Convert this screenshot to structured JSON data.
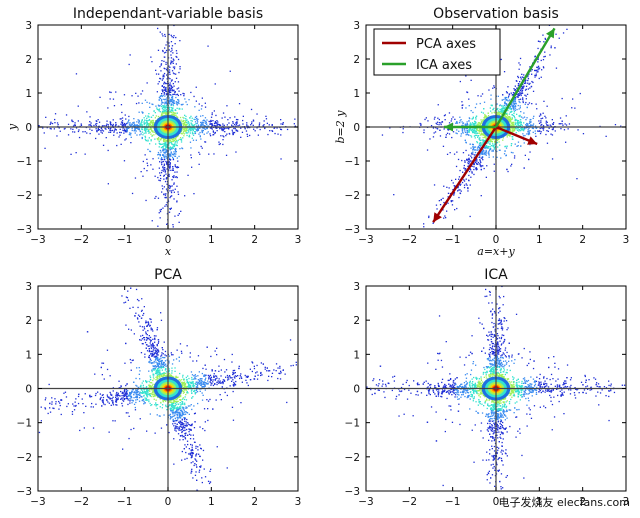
{
  "colors": {
    "background": "#ffffff",
    "frame": "#000000",
    "zero_axes": "#444444",
    "density_low": "#1f2fd6",
    "density_mid": "#35e2cf",
    "density_high": "#ffd400",
    "density_peak": "#d40000",
    "pca_axes": "#a00000",
    "ica_axes": "#2aa02a"
  },
  "chart_data": [
    {
      "type": "scatter",
      "style": "density-colored point cloud",
      "title": "Independant-variable basis",
      "xlabel": "x",
      "ylabel": "y",
      "xlim": [
        -3,
        3
      ],
      "ylim": [
        -3,
        3
      ],
      "xticks": [
        -3,
        -2,
        -1,
        0,
        1,
        2,
        3
      ],
      "yticks": [
        -3,
        -2,
        -1,
        0,
        1,
        2,
        3
      ],
      "grid": false,
      "zero_lines": true,
      "distribution": {
        "center": [
          0,
          0
        ],
        "arms": [
          {
            "direction": [
              1,
              0
            ],
            "extent": 3
          },
          {
            "direction": [
              0,
              1
            ],
            "extent": 3
          }
        ]
      }
    },
    {
      "type": "scatter",
      "style": "density-colored point cloud",
      "title": "Observation basis",
      "xlabel": "a=x+y",
      "ylabel": "b=2 y",
      "xlim": [
        -3,
        3
      ],
      "ylim": [
        -3,
        3
      ],
      "xticks": [
        -3,
        -2,
        -1,
        0,
        1,
        2,
        3
      ],
      "yticks": [
        -3,
        -2,
        -1,
        0,
        1,
        2,
        3
      ],
      "grid": false,
      "zero_lines": true,
      "distribution": {
        "center": [
          0,
          0
        ],
        "arms": [
          {
            "direction": [
              1,
              0
            ],
            "extent": 1.5
          },
          {
            "direction": [
              1,
              2
            ],
            "extent": 3
          }
        ]
      },
      "legend": {
        "placement": "top-left",
        "entries": [
          {
            "label": "PCA axes",
            "color": "#a00000"
          },
          {
            "label": "ICA axes",
            "color": "#2aa02a"
          }
        ]
      },
      "arrows": [
        {
          "series": "PCA axes",
          "from": [
            0,
            0
          ],
          "to": [
            -1.45,
            -2.8
          ]
        },
        {
          "series": "PCA axes",
          "from": [
            0,
            0
          ],
          "to": [
            0.95,
            -0.5
          ]
        },
        {
          "series": "ICA axes",
          "from": [
            0,
            0
          ],
          "to": [
            1.35,
            2.9
          ]
        },
        {
          "series": "ICA axes",
          "from": [
            0,
            0
          ],
          "to": [
            -1.2,
            0
          ]
        }
      ]
    },
    {
      "type": "scatter",
      "style": "density-colored point cloud",
      "title": "PCA",
      "xlabel": "",
      "ylabel": "",
      "xlim": [
        -3,
        3
      ],
      "ylim": [
        -3,
        3
      ],
      "xticks": [
        -3,
        -2,
        -1,
        0,
        1,
        2,
        3
      ],
      "yticks": [
        -3,
        -2,
        -1,
        0,
        1,
        2,
        3
      ],
      "grid": false,
      "zero_lines": true,
      "distribution": {
        "center": [
          0,
          0
        ],
        "arms": [
          {
            "direction": [
              1,
              0.2
            ],
            "extent": 3
          },
          {
            "direction": [
              -0.3,
              1
            ],
            "extent": 3
          }
        ]
      }
    },
    {
      "type": "scatter",
      "style": "density-colored point cloud",
      "title": "ICA",
      "xlabel": "",
      "ylabel": "",
      "xlim": [
        -3,
        3
      ],
      "ylim": [
        -3,
        3
      ],
      "xticks": [
        -3,
        -2,
        -1,
        0,
        1,
        2,
        3
      ],
      "yticks": [
        -3,
        -2,
        -1,
        0,
        1,
        2,
        3
      ],
      "grid": false,
      "zero_lines": true,
      "distribution": {
        "center": [
          0,
          0
        ],
        "arms": [
          {
            "direction": [
              1,
              0
            ],
            "extent": 3
          },
          {
            "direction": [
              0,
              1
            ],
            "extent": 3
          }
        ]
      }
    }
  ],
  "watermark": "电子发烧友 elecfans.com"
}
